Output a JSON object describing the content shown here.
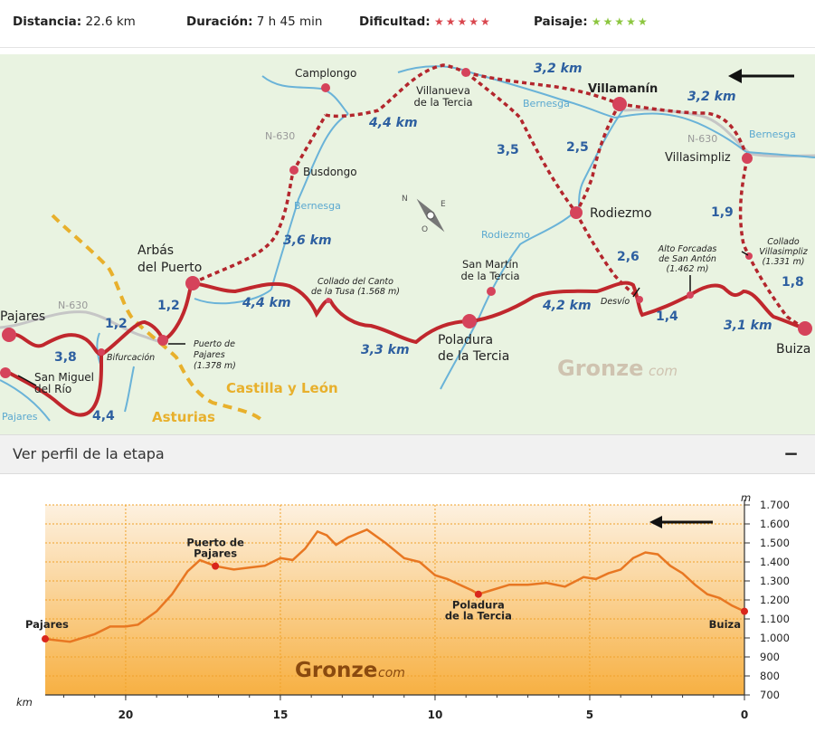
{
  "stats": {
    "distancia_label": "Distancia:",
    "distancia_value": "22.6 km",
    "duracion_label": "Duración:",
    "duracion_value": "7 h 45 min",
    "dificultad_label": "Dificultad:",
    "dificultad_stars": "★★★★★",
    "paisaje_label": "Paisaje:",
    "paisaje_stars": "★★★★★",
    "colors": {
      "dificultad": "#d9464e",
      "paisaje": "#8cc63f"
    }
  },
  "map": {
    "colors": {
      "land": "#e9f3e1",
      "route": "#c0272d",
      "river": "#6ab3d8",
      "road": "#c3c3c3",
      "border": "#e8b02c",
      "distance": "#2d5fa0"
    },
    "places": {
      "camplongo": "Camplongo",
      "villanueva": "Villanueva\nde la Tercia",
      "villamanin": "Villamanín",
      "busdongo": "Busdongo",
      "villasimpliz": "Villasimpliz",
      "rodiezmo": "Rodiezmo",
      "arbas": "Arbás\ndel Puerto",
      "collado_tusa": "Collado del Canto\nde la Tusa (1.568 m)",
      "san_martin": "San Martín\nde la Tercia",
      "alto_forcadas": "Alto Forcadas\nde San Antón\n(1.462 m)",
      "collado_villasimpliz": "Collado\nVillasimpliz\n(1.331 m)",
      "pajares": "Pajares",
      "bifurcacion": "Bifurcación",
      "puerto_pajares": "Puerto de\nPajares\n(1.378 m)",
      "poladura": "Poladura\nde la Tercia",
      "desvio": "Desvío",
      "buiza": "Buiza",
      "san_miguel": "San Miguel\ndel Río"
    },
    "rivers": {
      "bernesga": "Bernesga",
      "rodiezmo": "Rodiezmo",
      "pajares": "Pajares"
    },
    "roads": {
      "n630": "N-630"
    },
    "regions": {
      "castilla": "Castilla y León",
      "asturias": "Asturias"
    },
    "distances": {
      "d_3_2_top": "3,2 km",
      "d_4_4_top": "4,4 km",
      "d_3_2_right": "3,2 km",
      "d_3_5": "3,5",
      "d_2_5": "2,5",
      "d_3_6": "3,6 km",
      "d_1_9": "1,9",
      "d_2_6": "2,6",
      "d_1_8": "1,8",
      "d_1_2_a": "1,2",
      "d_1_2_b": "1,2",
      "d_4_4_mid": "4,4 km",
      "d_3_3": "3,3 km",
      "d_4_2": "4,2 km",
      "d_1_4": "1,4",
      "d_3_1": "3,1 km",
      "d_3_8": "3,8",
      "d_4_4_low": "4,4"
    },
    "watermark": "Gronze",
    "watermark_sub": "com"
  },
  "perfil": {
    "header": "Ver perfil de la etapa",
    "toggle": "−"
  },
  "chart_data": {
    "type": "line",
    "x_reversed": true,
    "xlabel": "km",
    "ylabel": "m",
    "xlim": [
      22.6,
      0
    ],
    "ylim": [
      700,
      1700
    ],
    "xticks": [
      20,
      15,
      10,
      5,
      0
    ],
    "yticks": [
      700,
      800,
      900,
      1000,
      1100,
      1200,
      1300,
      1400,
      1500,
      1600,
      1700
    ],
    "ytick_labels": [
      "700",
      "800",
      "900",
      "1.000",
      "1.100",
      "1.200",
      "1.300",
      "1.400",
      "1.500",
      "1.600",
      "1.700"
    ],
    "grid": true,
    "x": [
      22.6,
      21.8,
      21.0,
      20.5,
      20.0,
      19.6,
      19.0,
      18.5,
      18.0,
      17.6,
      17.1,
      16.5,
      16.0,
      15.5,
      15.0,
      14.6,
      14.2,
      13.8,
      13.5,
      13.2,
      12.8,
      12.2,
      11.6,
      11.0,
      10.5,
      10.0,
      9.6,
      9.2,
      8.8,
      8.6,
      8.2,
      7.6,
      7.0,
      6.4,
      5.8,
      5.2,
      4.8,
      4.4,
      4.0,
      3.6,
      3.2,
      2.8,
      2.4,
      2.0,
      1.6,
      1.2,
      0.8,
      0.4,
      0.0
    ],
    "y": [
      995,
      980,
      1020,
      1060,
      1060,
      1070,
      1140,
      1230,
      1350,
      1410,
      1378,
      1360,
      1370,
      1380,
      1420,
      1410,
      1470,
      1560,
      1540,
      1490,
      1530,
      1570,
      1500,
      1420,
      1400,
      1330,
      1310,
      1280,
      1250,
      1230,
      1250,
      1280,
      1280,
      1290,
      1270,
      1320,
      1310,
      1340,
      1360,
      1420,
      1450,
      1440,
      1380,
      1340,
      1280,
      1230,
      1210,
      1170,
      1140
    ],
    "points": [
      {
        "label": "Pajares",
        "x": 22.6,
        "y": 995
      },
      {
        "label": "Puerto de\nPajares",
        "x": 17.1,
        "y": 1378
      },
      {
        "label": "Poladura\nde la Tercia",
        "x": 8.6,
        "y": 1230
      },
      {
        "label": "Buiza",
        "x": 0.0,
        "y": 1140
      }
    ],
    "color": "#e87722"
  },
  "profile_watermark": "Gronze",
  "profile_watermark_sub": "com"
}
